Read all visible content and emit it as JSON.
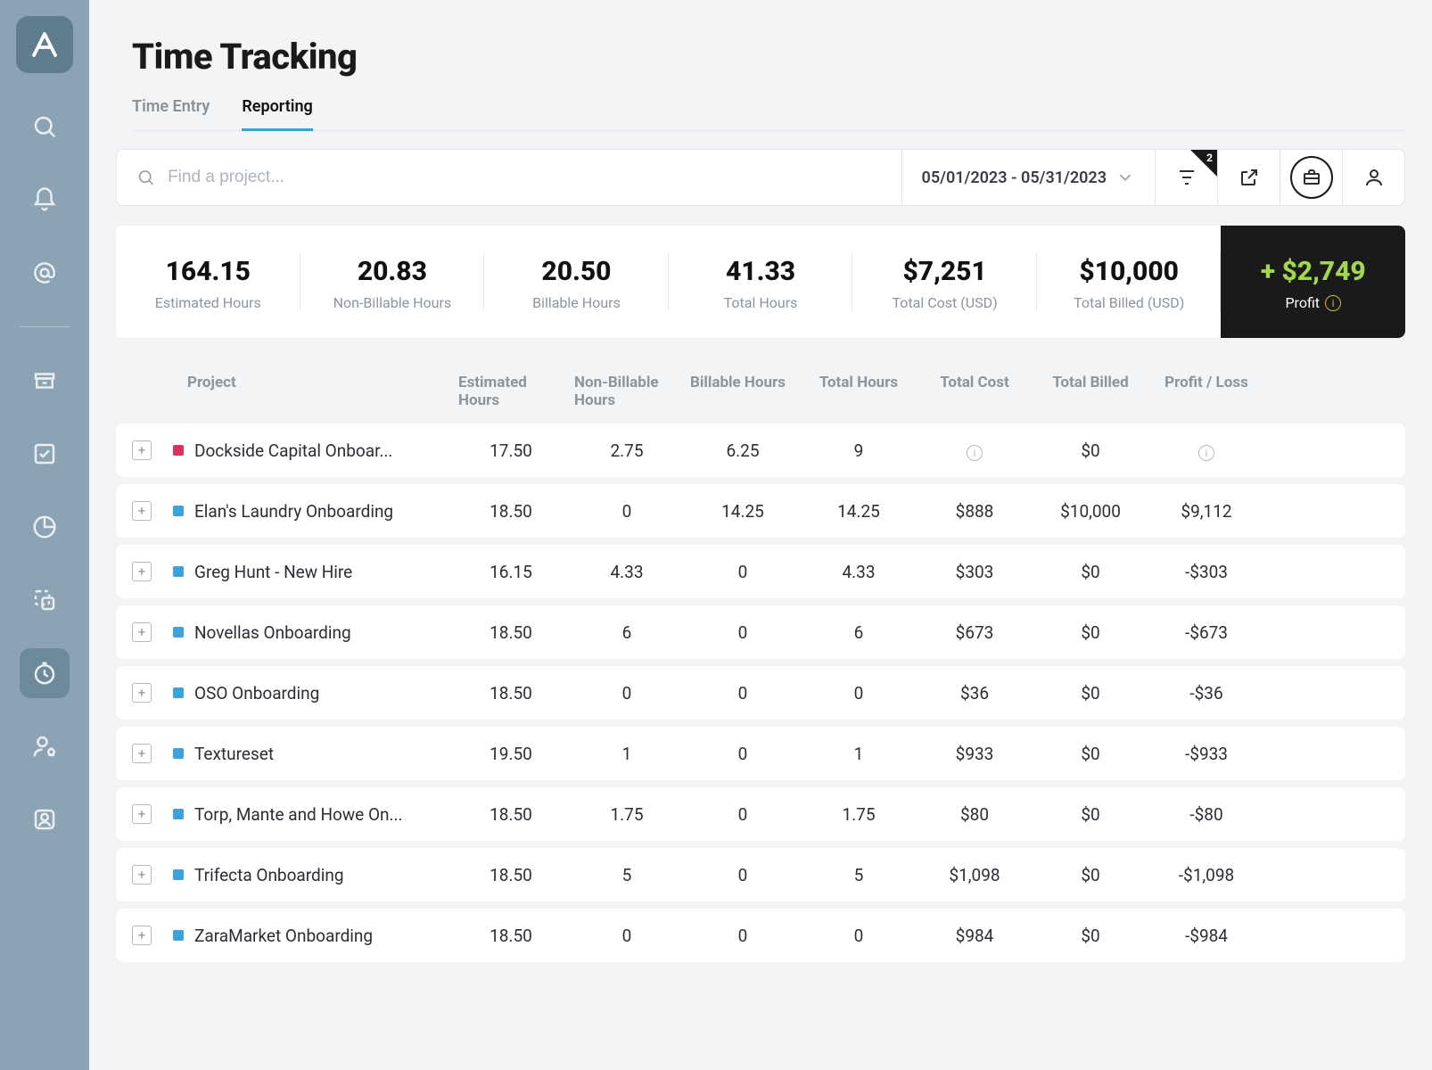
{
  "page": {
    "title": "Time Tracking",
    "tabs": [
      "Time Entry",
      "Reporting"
    ],
    "active_tab": 1
  },
  "toolbar": {
    "search_placeholder": "Find a project...",
    "date_range": "05/01/2023 - 05/31/2023",
    "filter_badge": "2"
  },
  "kpis": [
    {
      "value": "164.15",
      "label": "Estimated Hours"
    },
    {
      "value": "20.83",
      "label": "Non-Billable Hours"
    },
    {
      "value": "20.50",
      "label": "Billable Hours"
    },
    {
      "value": "41.33",
      "label": "Total Hours"
    },
    {
      "value": "$7,251",
      "label": "Total Cost (USD)"
    },
    {
      "value": "$10,000",
      "label": "Total Billed (USD)"
    },
    {
      "value": "+ $2,749",
      "label": "Profit",
      "profit": true
    }
  ],
  "columns": [
    "Project",
    "Estimated Hours",
    "Non-Billable Hours",
    "Billable Hours",
    "Total Hours",
    "Total Cost",
    "Total Billed",
    "Profit / Loss"
  ],
  "rows": [
    {
      "color": "#d8335f",
      "name": "Dockside Capital Onboar...",
      "est": "17.50",
      "nb": "2.75",
      "b": "6.25",
      "tot": "9",
      "cost": "ICON",
      "billed": "$0",
      "pl": "ICON"
    },
    {
      "color": "#3aa3d9",
      "name": "Elan's Laundry Onboarding",
      "est": "18.50",
      "nb": "0",
      "b": "14.25",
      "tot": "14.25",
      "cost": "$888",
      "billed": "$10,000",
      "pl": "$9,112"
    },
    {
      "color": "#3aa3d9",
      "name": "Greg Hunt - New Hire",
      "est": "16.15",
      "nb": "4.33",
      "b": "0",
      "tot": "4.33",
      "cost": "$303",
      "billed": "$0",
      "pl": "-$303"
    },
    {
      "color": "#3aa3d9",
      "name": "Novellas Onboarding",
      "est": "18.50",
      "nb": "6",
      "b": "0",
      "tot": "6",
      "cost": "$673",
      "billed": "$0",
      "pl": "-$673"
    },
    {
      "color": "#3aa3d9",
      "name": "OSO Onboarding",
      "est": "18.50",
      "nb": "0",
      "b": "0",
      "tot": "0",
      "cost": "$36",
      "billed": "$0",
      "pl": "-$36"
    },
    {
      "color": "#3aa3d9",
      "name": "Textureset",
      "est": "19.50",
      "nb": "1",
      "b": "0",
      "tot": "1",
      "cost": "$933",
      "billed": "$0",
      "pl": "-$933"
    },
    {
      "color": "#3aa3d9",
      "name": "Torp, Mante and Howe On...",
      "est": "18.50",
      "nb": "1.75",
      "b": "0",
      "tot": "1.75",
      "cost": "$80",
      "billed": "$0",
      "pl": "-$80"
    },
    {
      "color": "#3aa3d9",
      "name": "Trifecta Onboarding",
      "est": "18.50",
      "nb": "5",
      "b": "0",
      "tot": "5",
      "cost": "$1,098",
      "billed": "$0",
      "pl": "-$1,098"
    },
    {
      "color": "#3aa3d9",
      "name": "ZaraMarket Onboarding",
      "est": "18.50",
      "nb": "0",
      "b": "0",
      "tot": "0",
      "cost": "$984",
      "billed": "$0",
      "pl": "-$984"
    }
  ],
  "colors": {
    "nav_bg": "#8ca3b3",
    "nav_active": "#6d8a9b",
    "accent": "#2aa7d8",
    "profit_green": "#a2d84a",
    "profit_bg": "#1a1a1a"
  }
}
